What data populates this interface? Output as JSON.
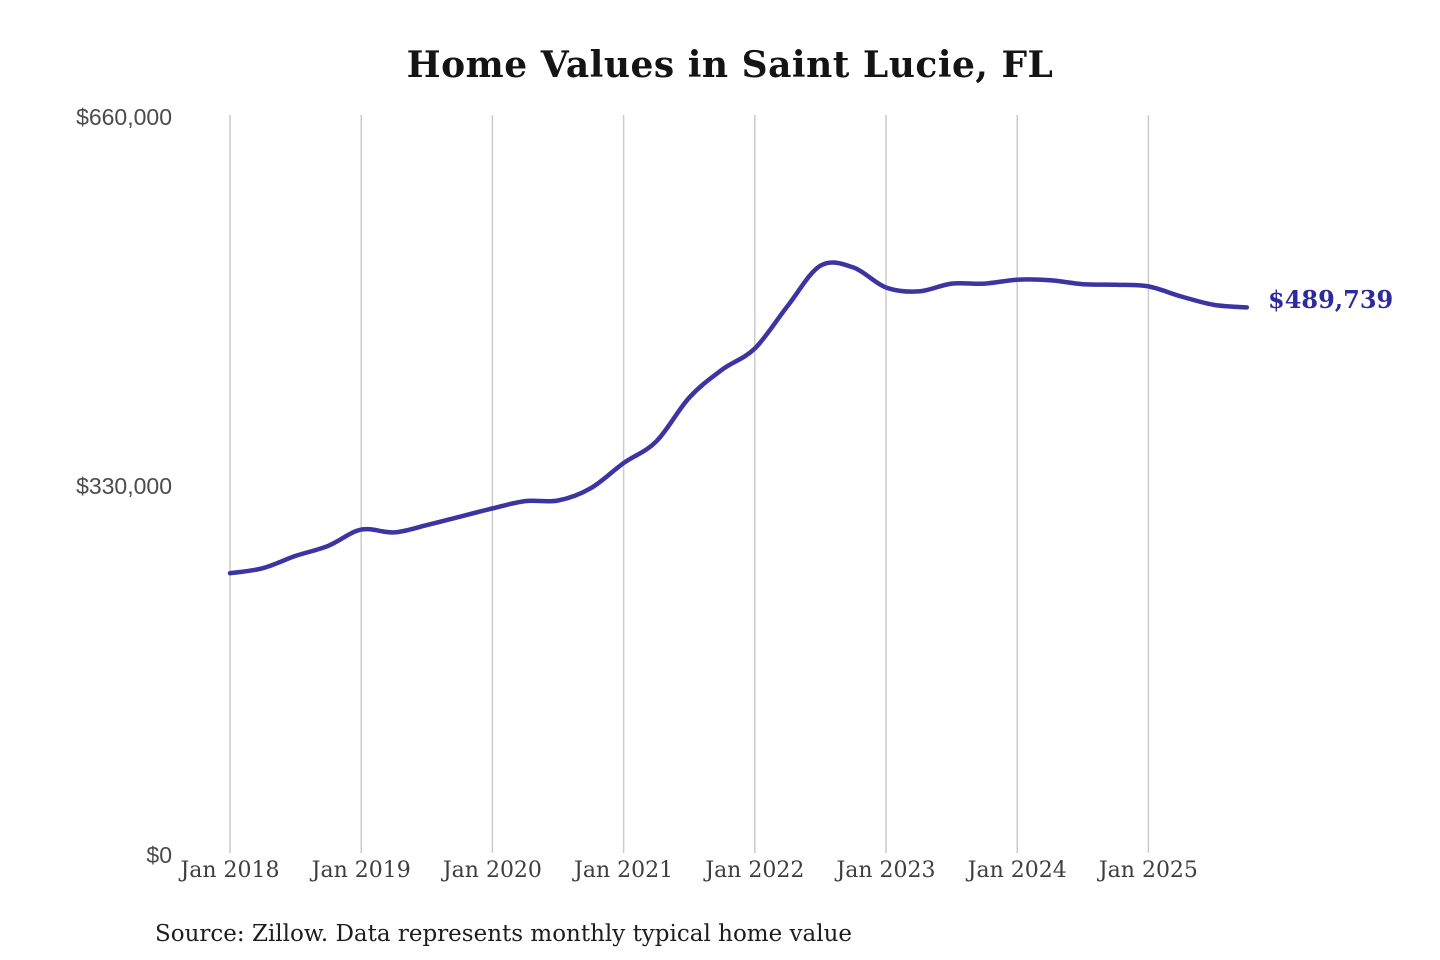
{
  "page": {
    "background": "#ffffff"
  },
  "chart": {
    "title": "Home Values in Saint Lucie, FL",
    "source_note": "Source: Zillow. Data represents monthly typical home value",
    "end_value_label": "$489,739",
    "colors": {
      "line": "#3b34a2",
      "end_label": "#2d2b9c",
      "gridline": "#cccccc",
      "title_text": "#141414",
      "axis_text": "#4b4b4b"
    }
  },
  "chart_data": {
    "type": "line",
    "title": "Home Values in Saint Lucie, FL",
    "series_name": "Monthly typical home value (USD)",
    "x": [
      "Jan 2018",
      "Apr 2018",
      "Jul 2018",
      "Oct 2018",
      "Jan 2019",
      "Apr 2019",
      "Jul 2019",
      "Oct 2019",
      "Jan 2020",
      "Apr 2020",
      "Jul 2020",
      "Oct 2020",
      "Jan 2021",
      "Apr 2021",
      "Jul 2021",
      "Oct 2021",
      "Jan 2022",
      "Apr 2022",
      "Jul 2022",
      "Oct 2022",
      "Jan 2023",
      "Apr 2023",
      "Jul 2023",
      "Oct 2023",
      "Jan 2024",
      "Apr 2024",
      "Jul 2024",
      "Oct 2024",
      "Jan 2025",
      "Apr 2025",
      "Jul 2025",
      "Oct 2025"
    ],
    "values": [
      252000,
      256500,
      267500,
      276500,
      291000,
      288500,
      295000,
      302500,
      310000,
      316500,
      317000,
      328000,
      350500,
      370000,
      409000,
      434000,
      453000,
      491000,
      527000,
      525500,
      507500,
      504000,
      511000,
      511000,
      514500,
      514000,
      510500,
      510000,
      508500,
      499500,
      492000,
      489739
    ],
    "x_tick_labels": [
      "Jan 2018",
      "Jan 2019",
      "Jan 2020",
      "Jan 2021",
      "Jan 2022",
      "Jan 2023",
      "Jan 2024",
      "Jan 2025"
    ],
    "y_ticks": [
      {
        "value": 0,
        "label": "$0"
      },
      {
        "value": 330000,
        "label": "$330,000"
      },
      {
        "value": 660000,
        "label": "$660,000"
      }
    ],
    "ylim": [
      0,
      660000
    ],
    "xlabel": "",
    "ylabel": "",
    "grid": "vertical-only",
    "legend": "none",
    "final_point": {
      "x": "Oct 2025",
      "value": 489739,
      "label": "$489,739"
    },
    "source_note": "Source: Zillow. Data represents monthly typical home value"
  }
}
